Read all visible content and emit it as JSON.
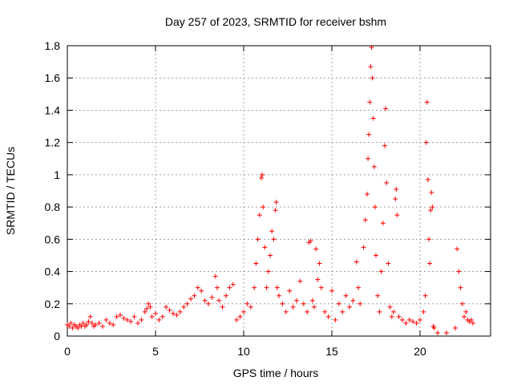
{
  "chart_data": {
    "type": "scatter",
    "title": "Day 257 of 2023, SRMTID for receiver bshm",
    "xlabel": "GPS time / hours",
    "ylabel": "SRMTID / TECUs",
    "xlim": [
      0,
      24
    ],
    "ylim": [
      0,
      1.8
    ],
    "xticks": [
      0,
      5,
      10,
      15,
      20
    ],
    "xtick_labels": [
      "0",
      "5",
      "10",
      "15",
      "20"
    ],
    "yticks": [
      0,
      0.2,
      0.4,
      0.6,
      0.8,
      1,
      1.2,
      1.4,
      1.6,
      1.8
    ],
    "ytick_labels": [
      "0",
      "0.2",
      "0.4",
      "0.6",
      "0.8",
      "1",
      "1.2",
      "1.4",
      "1.6",
      "1.8"
    ],
    "grid": true,
    "marker": "+",
    "series": [
      {
        "name": "SRMTID",
        "color": "#ff0000",
        "points": [
          [
            0.0,
            0.07
          ],
          [
            0.1,
            0.06
          ],
          [
            0.2,
            0.08
          ],
          [
            0.3,
            0.05
          ],
          [
            0.4,
            0.07
          ],
          [
            0.5,
            0.06
          ],
          [
            0.6,
            0.05
          ],
          [
            0.7,
            0.07
          ],
          [
            0.8,
            0.06
          ],
          [
            0.9,
            0.08
          ],
          [
            1.0,
            0.06
          ],
          [
            1.1,
            0.07
          ],
          [
            1.2,
            0.09
          ],
          [
            1.3,
            0.12
          ],
          [
            1.4,
            0.08
          ],
          [
            1.5,
            0.06
          ],
          [
            1.6,
            0.07
          ],
          [
            1.8,
            0.08
          ],
          [
            2.0,
            0.06
          ],
          [
            2.2,
            0.1
          ],
          [
            2.4,
            0.08
          ],
          [
            2.6,
            0.07
          ],
          [
            2.8,
            0.12
          ],
          [
            3.0,
            0.13
          ],
          [
            3.2,
            0.11
          ],
          [
            3.4,
            0.1
          ],
          [
            3.6,
            0.09
          ],
          [
            3.8,
            0.12
          ],
          [
            4.0,
            0.08
          ],
          [
            4.2,
            0.1
          ],
          [
            4.4,
            0.15
          ],
          [
            4.5,
            0.17
          ],
          [
            4.6,
            0.2
          ],
          [
            4.7,
            0.18
          ],
          [
            4.8,
            0.12
          ],
          [
            5.0,
            0.14
          ],
          [
            5.2,
            0.1
          ],
          [
            5.4,
            0.12
          ],
          [
            5.6,
            0.18
          ],
          [
            5.8,
            0.16
          ],
          [
            6.0,
            0.14
          ],
          [
            6.2,
            0.13
          ],
          [
            6.4,
            0.15
          ],
          [
            6.6,
            0.18
          ],
          [
            6.8,
            0.2
          ],
          [
            7.0,
            0.23
          ],
          [
            7.2,
            0.25
          ],
          [
            7.4,
            0.3
          ],
          [
            7.6,
            0.28
          ],
          [
            7.8,
            0.22
          ],
          [
            8.0,
            0.2
          ],
          [
            8.2,
            0.24
          ],
          [
            8.4,
            0.37
          ],
          [
            8.5,
            0.3
          ],
          [
            8.6,
            0.22
          ],
          [
            8.8,
            0.18
          ],
          [
            9.0,
            0.25
          ],
          [
            9.2,
            0.3
          ],
          [
            9.4,
            0.32
          ],
          [
            9.6,
            0.1
          ],
          [
            9.8,
            0.12
          ],
          [
            10.0,
            0.15
          ],
          [
            10.2,
            0.2
          ],
          [
            10.4,
            0.18
          ],
          [
            10.6,
            0.3
          ],
          [
            10.7,
            0.45
          ],
          [
            10.8,
            0.6
          ],
          [
            10.9,
            0.75
          ],
          [
            11.0,
            0.98
          ],
          [
            11.05,
            1.0
          ],
          [
            11.1,
            0.8
          ],
          [
            11.2,
            0.55
          ],
          [
            11.3,
            0.3
          ],
          [
            11.4,
            0.4
          ],
          [
            11.5,
            0.5
          ],
          [
            11.6,
            0.65
          ],
          [
            11.7,
            0.6
          ],
          [
            11.8,
            0.78
          ],
          [
            11.85,
            0.83
          ],
          [
            11.9,
            0.3
          ],
          [
            12.0,
            0.25
          ],
          [
            12.2,
            0.2
          ],
          [
            12.4,
            0.15
          ],
          [
            12.6,
            0.28
          ],
          [
            12.8,
            0.18
          ],
          [
            13.0,
            0.22
          ],
          [
            13.2,
            0.34
          ],
          [
            13.4,
            0.2
          ],
          [
            13.6,
            0.15
          ],
          [
            13.7,
            0.58
          ],
          [
            13.8,
            0.59
          ],
          [
            13.9,
            0.22
          ],
          [
            14.0,
            0.18
          ],
          [
            14.1,
            0.54
          ],
          [
            14.2,
            0.35
          ],
          [
            14.3,
            0.45
          ],
          [
            14.4,
            0.3
          ],
          [
            14.6,
            0.15
          ],
          [
            14.8,
            0.12
          ],
          [
            15.0,
            0.28
          ],
          [
            15.2,
            0.1
          ],
          [
            15.4,
            0.2
          ],
          [
            15.6,
            0.15
          ],
          [
            15.8,
            0.25
          ],
          [
            16.0,
            0.18
          ],
          [
            16.2,
            0.22
          ],
          [
            16.4,
            0.46
          ],
          [
            16.5,
            0.3
          ],
          [
            16.6,
            0.2
          ],
          [
            16.8,
            0.55
          ],
          [
            16.9,
            0.72
          ],
          [
            17.0,
            0.88
          ],
          [
            17.05,
            1.1
          ],
          [
            17.1,
            1.25
          ],
          [
            17.15,
            1.45
          ],
          [
            17.2,
            1.67
          ],
          [
            17.25,
            1.79
          ],
          [
            17.3,
            1.6
          ],
          [
            17.35,
            1.35
          ],
          [
            17.4,
            1.05
          ],
          [
            17.45,
            0.8
          ],
          [
            17.5,
            0.5
          ],
          [
            17.6,
            0.25
          ],
          [
            17.7,
            0.15
          ],
          [
            17.8,
            0.4
          ],
          [
            17.9,
            0.7
          ],
          [
            18.0,
            1.18
          ],
          [
            18.05,
            1.41
          ],
          [
            18.1,
            0.95
          ],
          [
            18.2,
            0.45
          ],
          [
            18.3,
            0.18
          ],
          [
            18.4,
            0.12
          ],
          [
            18.5,
            0.15
          ],
          [
            18.6,
            0.85
          ],
          [
            18.65,
            0.91
          ],
          [
            18.7,
            0.75
          ],
          [
            18.8,
            0.12
          ],
          [
            19.0,
            0.1
          ],
          [
            19.2,
            0.08
          ],
          [
            19.4,
            0.1
          ],
          [
            19.6,
            0.09
          ],
          [
            19.8,
            0.08
          ],
          [
            20.0,
            0.1
          ],
          [
            20.2,
            0.15
          ],
          [
            20.3,
            0.25
          ],
          [
            20.35,
            1.2
          ],
          [
            20.4,
            1.45
          ],
          [
            20.45,
            0.97
          ],
          [
            20.5,
            0.6
          ],
          [
            20.55,
            0.45
          ],
          [
            20.6,
            0.78
          ],
          [
            20.65,
            0.89
          ],
          [
            20.7,
            0.8
          ],
          [
            20.75,
            0.06
          ],
          [
            20.8,
            0.05
          ],
          [
            21.0,
            0.02
          ],
          [
            21.5,
            0.02
          ],
          [
            22.0,
            0.05
          ],
          [
            22.1,
            0.54
          ],
          [
            22.2,
            0.4
          ],
          [
            22.3,
            0.3
          ],
          [
            22.4,
            0.2
          ],
          [
            22.5,
            0.12
          ],
          [
            22.6,
            0.15
          ],
          [
            22.7,
            0.1
          ],
          [
            22.8,
            0.09
          ],
          [
            22.9,
            0.1
          ],
          [
            23.0,
            0.08
          ]
        ]
      }
    ]
  }
}
